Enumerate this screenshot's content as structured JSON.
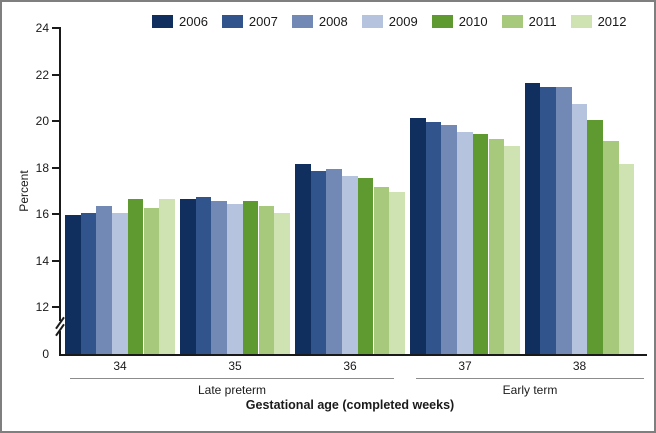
{
  "figure": {
    "y_axis_title": "Percent",
    "x_axis_title": "Gestational age (completed weeks)",
    "zero_label": "0"
  },
  "chart_data": {
    "type": "bar",
    "title": "",
    "xlabel": "Gestational age (completed weeks)",
    "ylabel": "Percent",
    "legend_position": "top",
    "grid": false,
    "y_axis_break_between": [
      0,
      12
    ],
    "ylim": [
      12,
      24
    ],
    "y_ticks": [
      0,
      12,
      14,
      16,
      18,
      20,
      22,
      24
    ],
    "y_tick_labels_top_to_bottom": [
      "24",
      "22",
      "20",
      "18",
      "16",
      "14",
      "12"
    ],
    "categories": [
      "34",
      "35",
      "36",
      "37",
      "38"
    ],
    "category_groups": [
      {
        "label": "Late preterm",
        "categories": [
          "34",
          "35",
          "36"
        ]
      },
      {
        "label": "Early term",
        "categories": [
          "37",
          "38"
        ]
      }
    ],
    "series": [
      {
        "name": "2006",
        "color": "#102f5e",
        "values": [
          15.9,
          16.6,
          18.1,
          20.1,
          21.6
        ]
      },
      {
        "name": "2007",
        "color": "#31548c",
        "values": [
          16.0,
          16.7,
          17.8,
          19.9,
          21.4
        ]
      },
      {
        "name": "2008",
        "color": "#7289b6",
        "values": [
          16.3,
          16.5,
          17.9,
          19.8,
          21.4
        ]
      },
      {
        "name": "2009",
        "color": "#b6c3de",
        "values": [
          16.0,
          16.4,
          17.6,
          19.5,
          20.7
        ]
      },
      {
        "name": "2010",
        "color": "#5f9a31",
        "values": [
          16.6,
          16.5,
          17.5,
          19.4,
          20.0
        ]
      },
      {
        "name": "2011",
        "color": "#a7c97c",
        "values": [
          16.2,
          16.3,
          17.1,
          19.2,
          19.1
        ]
      },
      {
        "name": "2012",
        "color": "#cfe2b2",
        "values": [
          16.6,
          16.0,
          16.9,
          18.9,
          18.1
        ]
      }
    ]
  }
}
